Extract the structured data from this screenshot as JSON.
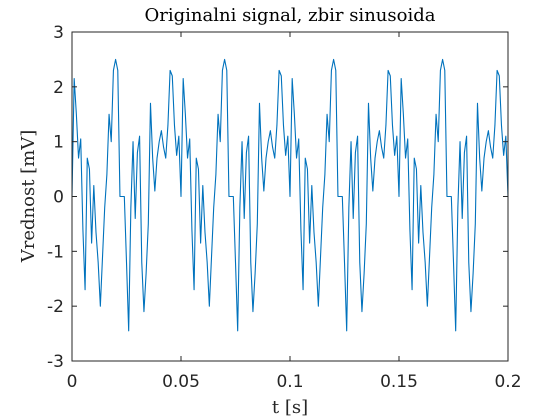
{
  "chart_data": {
    "type": "line",
    "title": "Originalni signal, zbir sinusoida",
    "xlabel": "t [s]",
    "ylabel": "Vrednost [mV]",
    "xlim": [
      0,
      0.2
    ],
    "ylim": [
      -3,
      3
    ],
    "x_ticks": [
      "0",
      "0.05",
      "0.1",
      "0.15",
      "0.2"
    ],
    "y_ticks": [
      "-3",
      "-2",
      "-1",
      "0",
      "1",
      "2",
      "3"
    ],
    "x_tick_values": [
      0,
      0.05,
      0.1,
      0.15,
      0.2
    ],
    "y_tick_values": [
      -3,
      -2,
      -1,
      0,
      1,
      2,
      3
    ],
    "grid": false,
    "series": [
      {
        "color": "#0072BD",
        "x": [
          0,
          0.001,
          0.002,
          0.003,
          0.004,
          0.005,
          0.006,
          0.007,
          0.008,
          0.009,
          0.01,
          0.011,
          0.012,
          0.013,
          0.014,
          0.015,
          0.016,
          0.017,
          0.018,
          0.019,
          0.02,
          0.021,
          0.022,
          0.023,
          0.024,
          0.025,
          0.026,
          0.027,
          0.028,
          0.029,
          0.03,
          0.031,
          0.032,
          0.033,
          0.034,
          0.035,
          0.036,
          0.037,
          0.038,
          0.039,
          0.04,
          0.041,
          0.042,
          0.043,
          0.044,
          0.045,
          0.046,
          0.047,
          0.048,
          0.049,
          0.05
        ],
        "y": [
          0.0,
          2.15,
          1.5,
          0.7,
          1.05,
          -0.6,
          -1.7,
          0.7,
          0.5,
          -0.85,
          0.2,
          -0.65,
          -1.2,
          -2.0,
          -1.1,
          -0.2,
          0.4,
          1.5,
          1.0,
          2.3,
          2.5,
          2.3,
          0.0,
          0.0,
          0.0,
          -1.2,
          -2.45,
          -0.2,
          1.0,
          -0.4,
          0.8,
          1.1,
          -1.2,
          -2.1,
          -1.4,
          -0.5,
          1.7,
          0.7,
          0.1,
          0.7,
          1.0,
          1.2,
          0.9,
          0.7,
          1.3,
          2.3,
          2.2,
          1.3,
          0.75,
          1.1,
          0.0
        ]
      }
    ]
  }
}
